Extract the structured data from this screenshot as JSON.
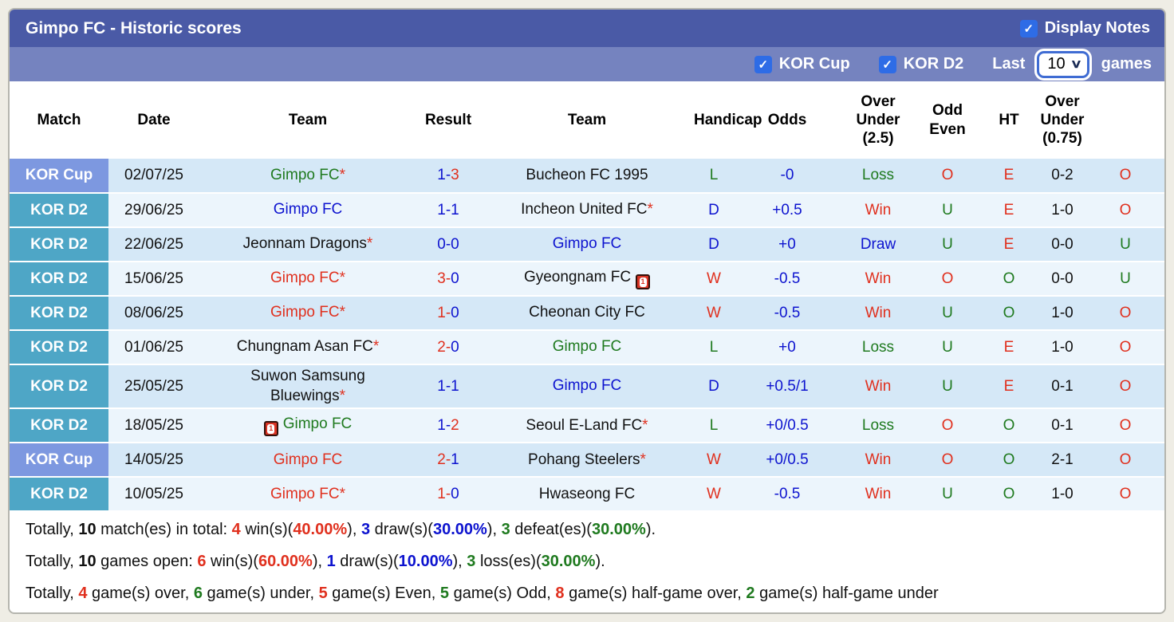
{
  "colors": {
    "title_bar": "#4a5aa6",
    "filter_bar": "#7583bf",
    "cup_badge": "#7d98e0",
    "d2_badge": "#4ea6c6",
    "row_odd": "#d5e8f7",
    "row_even": "#ecf5fc",
    "red": "#e0301e",
    "blue": "#0d13cf",
    "green": "#1f7a1f",
    "checkbox_blue": "#2e6ce6"
  },
  "header": {
    "title": "Gimpo FC - Historic scores",
    "display_notes": "Display Notes",
    "display_notes_checked": "✓"
  },
  "filters": {
    "kor_cup": "KOR Cup",
    "kor_cup_checked": "✓",
    "kor_d2": "KOR D2",
    "kor_d2_checked": "✓",
    "last": "Last",
    "count": "10",
    "games": "games"
  },
  "table": {
    "columns": [
      {
        "label": "Match"
      },
      {
        "label": "Date"
      },
      {
        "label": "Team"
      },
      {
        "label": "Result"
      },
      {
        "label": "Team"
      },
      {
        "label": "Handicap"
      },
      {
        "label": "Odds"
      },
      {
        "label": "Over Under (2.5)",
        "lines": [
          "Over",
          "Under",
          "(2.5)"
        ]
      },
      {
        "label": "Odd Even",
        "lines": [
          "Odd",
          "Even"
        ]
      },
      {
        "label": "HT"
      },
      {
        "label": "Over Under (0.75)",
        "lines": [
          "Over",
          "Under",
          "(0.75)"
        ]
      }
    ],
    "rows": [
      {
        "league": "KOR Cup",
        "league_class": "cup",
        "date": "02/07/25",
        "home": {
          "name": "Gimpo FC",
          "star": true,
          "color": "green",
          "redcard": null
        },
        "score": {
          "home": "1",
          "away": "3",
          "home_color": "blue",
          "away_color": "red"
        },
        "away": {
          "name": "Bucheon FC 1995",
          "star": false,
          "color": "black",
          "redcard": null
        },
        "wdl": {
          "text": "L",
          "color": "green"
        },
        "handicap": {
          "text": "-0",
          "color": "blue"
        },
        "odds": {
          "text": "Loss",
          "color": "green"
        },
        "ou25": {
          "text": "O",
          "color": "red"
        },
        "oddeven": {
          "text": "E",
          "color": "red"
        },
        "ht": {
          "text": "0-2",
          "color": "black"
        },
        "ou075": {
          "text": "O",
          "color": "red"
        }
      },
      {
        "league": "KOR D2",
        "league_class": "d2",
        "date": "29/06/25",
        "home": {
          "name": "Gimpo FC",
          "star": false,
          "color": "blue",
          "redcard": null
        },
        "score": {
          "home": "1",
          "away": "1",
          "home_color": "blue",
          "away_color": "blue"
        },
        "away": {
          "name": "Incheon United FC",
          "star": true,
          "color": "black",
          "redcard": null
        },
        "wdl": {
          "text": "D",
          "color": "blue"
        },
        "handicap": {
          "text": "+0.5",
          "color": "blue"
        },
        "odds": {
          "text": "Win",
          "color": "red"
        },
        "ou25": {
          "text": "U",
          "color": "green"
        },
        "oddeven": {
          "text": "E",
          "color": "red"
        },
        "ht": {
          "text": "1-0",
          "color": "black"
        },
        "ou075": {
          "text": "O",
          "color": "red"
        }
      },
      {
        "league": "KOR D2",
        "league_class": "d2",
        "date": "22/06/25",
        "home": {
          "name": "Jeonnam Dragons",
          "star": true,
          "color": "black",
          "redcard": null
        },
        "score": {
          "home": "0",
          "away": "0",
          "home_color": "blue",
          "away_color": "blue"
        },
        "away": {
          "name": "Gimpo FC",
          "star": false,
          "color": "blue",
          "redcard": null
        },
        "wdl": {
          "text": "D",
          "color": "blue"
        },
        "handicap": {
          "text": "+0",
          "color": "blue"
        },
        "odds": {
          "text": "Draw",
          "color": "blue"
        },
        "ou25": {
          "text": "U",
          "color": "green"
        },
        "oddeven": {
          "text": "E",
          "color": "red"
        },
        "ht": {
          "text": "0-0",
          "color": "black"
        },
        "ou075": {
          "text": "U",
          "color": "green"
        }
      },
      {
        "league": "KOR D2",
        "league_class": "d2",
        "date": "15/06/25",
        "home": {
          "name": "Gimpo FC",
          "star": true,
          "color": "red",
          "redcard": null
        },
        "score": {
          "home": "3",
          "away": "0",
          "home_color": "red",
          "away_color": "blue"
        },
        "away": {
          "name": "Gyeongnam FC",
          "star": false,
          "color": "black",
          "redcard": "after"
        },
        "wdl": {
          "text": "W",
          "color": "red"
        },
        "handicap": {
          "text": "-0.5",
          "color": "blue"
        },
        "odds": {
          "text": "Win",
          "color": "red"
        },
        "ou25": {
          "text": "O",
          "color": "red"
        },
        "oddeven": {
          "text": "O",
          "color": "green"
        },
        "ht": {
          "text": "0-0",
          "color": "black"
        },
        "ou075": {
          "text": "U",
          "color": "green"
        }
      },
      {
        "league": "KOR D2",
        "league_class": "d2",
        "date": "08/06/25",
        "home": {
          "name": "Gimpo FC",
          "star": true,
          "color": "red",
          "redcard": null
        },
        "score": {
          "home": "1",
          "away": "0",
          "home_color": "red",
          "away_color": "blue"
        },
        "away": {
          "name": "Cheonan City FC",
          "star": false,
          "color": "black",
          "redcard": null
        },
        "wdl": {
          "text": "W",
          "color": "red"
        },
        "handicap": {
          "text": "-0.5",
          "color": "blue"
        },
        "odds": {
          "text": "Win",
          "color": "red"
        },
        "ou25": {
          "text": "U",
          "color": "green"
        },
        "oddeven": {
          "text": "O",
          "color": "green"
        },
        "ht": {
          "text": "1-0",
          "color": "black"
        },
        "ou075": {
          "text": "O",
          "color": "red"
        }
      },
      {
        "league": "KOR D2",
        "league_class": "d2",
        "date": "01/06/25",
        "home": {
          "name": "Chungnam Asan FC",
          "star": true,
          "color": "black",
          "redcard": null
        },
        "score": {
          "home": "2",
          "away": "0",
          "home_color": "red",
          "away_color": "blue"
        },
        "away": {
          "name": "Gimpo FC",
          "star": false,
          "color": "green",
          "redcard": null
        },
        "wdl": {
          "text": "L",
          "color": "green"
        },
        "handicap": {
          "text": "+0",
          "color": "blue"
        },
        "odds": {
          "text": "Loss",
          "color": "green"
        },
        "ou25": {
          "text": "U",
          "color": "green"
        },
        "oddeven": {
          "text": "E",
          "color": "red"
        },
        "ht": {
          "text": "1-0",
          "color": "black"
        },
        "ou075": {
          "text": "O",
          "color": "red"
        }
      },
      {
        "league": "KOR D2",
        "league_class": "d2",
        "date": "25/05/25",
        "home": {
          "name": "Suwon Samsung Bluewings",
          "star": true,
          "color": "black",
          "redcard": null
        },
        "score": {
          "home": "1",
          "away": "1",
          "home_color": "blue",
          "away_color": "blue"
        },
        "away": {
          "name": "Gimpo FC",
          "star": false,
          "color": "blue",
          "redcard": null
        },
        "wdl": {
          "text": "D",
          "color": "blue"
        },
        "handicap": {
          "text": "+0.5/1",
          "color": "blue"
        },
        "odds": {
          "text": "Win",
          "color": "red"
        },
        "ou25": {
          "text": "U",
          "color": "green"
        },
        "oddeven": {
          "text": "E",
          "color": "red"
        },
        "ht": {
          "text": "0-1",
          "color": "black"
        },
        "ou075": {
          "text": "O",
          "color": "red"
        }
      },
      {
        "league": "KOR D2",
        "league_class": "d2",
        "date": "18/05/25",
        "home": {
          "name": "Gimpo FC",
          "star": false,
          "color": "green",
          "redcard": "before"
        },
        "score": {
          "home": "1",
          "away": "2",
          "home_color": "blue",
          "away_color": "red"
        },
        "away": {
          "name": "Seoul E-Land FC",
          "star": true,
          "color": "black",
          "redcard": null
        },
        "wdl": {
          "text": "L",
          "color": "green"
        },
        "handicap": {
          "text": "+0/0.5",
          "color": "blue"
        },
        "odds": {
          "text": "Loss",
          "color": "green"
        },
        "ou25": {
          "text": "O",
          "color": "red"
        },
        "oddeven": {
          "text": "O",
          "color": "green"
        },
        "ht": {
          "text": "0-1",
          "color": "black"
        },
        "ou075": {
          "text": "O",
          "color": "red"
        }
      },
      {
        "league": "KOR Cup",
        "league_class": "cup",
        "date": "14/05/25",
        "home": {
          "name": "Gimpo FC",
          "star": false,
          "color": "red",
          "redcard": null
        },
        "score": {
          "home": "2",
          "away": "1",
          "home_color": "red",
          "away_color": "blue"
        },
        "away": {
          "name": "Pohang Steelers",
          "star": true,
          "color": "black",
          "redcard": null
        },
        "wdl": {
          "text": "W",
          "color": "red"
        },
        "handicap": {
          "text": "+0/0.5",
          "color": "blue"
        },
        "odds": {
          "text": "Win",
          "color": "red"
        },
        "ou25": {
          "text": "O",
          "color": "red"
        },
        "oddeven": {
          "text": "O",
          "color": "green"
        },
        "ht": {
          "text": "2-1",
          "color": "black"
        },
        "ou075": {
          "text": "O",
          "color": "red"
        }
      },
      {
        "league": "KOR D2",
        "league_class": "d2",
        "date": "10/05/25",
        "home": {
          "name": "Gimpo FC",
          "star": true,
          "color": "red",
          "redcard": null
        },
        "score": {
          "home": "1",
          "away": "0",
          "home_color": "red",
          "away_color": "blue"
        },
        "away": {
          "name": "Hwaseong FC",
          "star": false,
          "color": "black",
          "redcard": null
        },
        "wdl": {
          "text": "W",
          "color": "red"
        },
        "handicap": {
          "text": "-0.5",
          "color": "blue"
        },
        "odds": {
          "text": "Win",
          "color": "red"
        },
        "ou25": {
          "text": "U",
          "color": "green"
        },
        "oddeven": {
          "text": "O",
          "color": "green"
        },
        "ht": {
          "text": "1-0",
          "color": "black"
        },
        "ou075": {
          "text": "O",
          "color": "red"
        }
      }
    ]
  },
  "summary": {
    "lines": [
      [
        [
          "Totally, ",
          "black",
          false
        ],
        [
          "10",
          "black",
          true
        ],
        [
          " match(es) in total: ",
          "black",
          false
        ],
        [
          "4",
          "red",
          true
        ],
        [
          " win(s)(",
          "black",
          false
        ],
        [
          "40.00%",
          "red",
          true
        ],
        [
          "), ",
          "black",
          false
        ],
        [
          "3",
          "blue",
          true
        ],
        [
          " draw(s)(",
          "black",
          false
        ],
        [
          "30.00%",
          "blue",
          true
        ],
        [
          "), ",
          "black",
          false
        ],
        [
          "3",
          "green",
          true
        ],
        [
          " defeat(es)(",
          "black",
          false
        ],
        [
          "30.00%",
          "green",
          true
        ],
        [
          ").",
          "black",
          false
        ]
      ],
      [
        [
          "Totally, ",
          "black",
          false
        ],
        [
          "10",
          "black",
          true
        ],
        [
          " games open: ",
          "black",
          false
        ],
        [
          "6",
          "red",
          true
        ],
        [
          " win(s)(",
          "black",
          false
        ],
        [
          "60.00%",
          "red",
          true
        ],
        [
          "), ",
          "black",
          false
        ],
        [
          "1",
          "blue",
          true
        ],
        [
          " draw(s)(",
          "black",
          false
        ],
        [
          "10.00%",
          "blue",
          true
        ],
        [
          "), ",
          "black",
          false
        ],
        [
          "3",
          "green",
          true
        ],
        [
          " loss(es)(",
          "black",
          false
        ],
        [
          "30.00%",
          "green",
          true
        ],
        [
          ").",
          "black",
          false
        ]
      ],
      [
        [
          "Totally, ",
          "black",
          false
        ],
        [
          "4",
          "red",
          true
        ],
        [
          " game(s) over, ",
          "black",
          false
        ],
        [
          "6",
          "green",
          true
        ],
        [
          " game(s) under, ",
          "black",
          false
        ],
        [
          "5",
          "red",
          true
        ],
        [
          " game(s) Even, ",
          "black",
          false
        ],
        [
          "5",
          "green",
          true
        ],
        [
          " game(s) Odd, ",
          "black",
          false
        ],
        [
          "8",
          "red",
          true
        ],
        [
          " game(s) half-game over, ",
          "black",
          false
        ],
        [
          "2",
          "green",
          true
        ],
        [
          " game(s) half-game under",
          "black",
          false
        ]
      ]
    ]
  }
}
